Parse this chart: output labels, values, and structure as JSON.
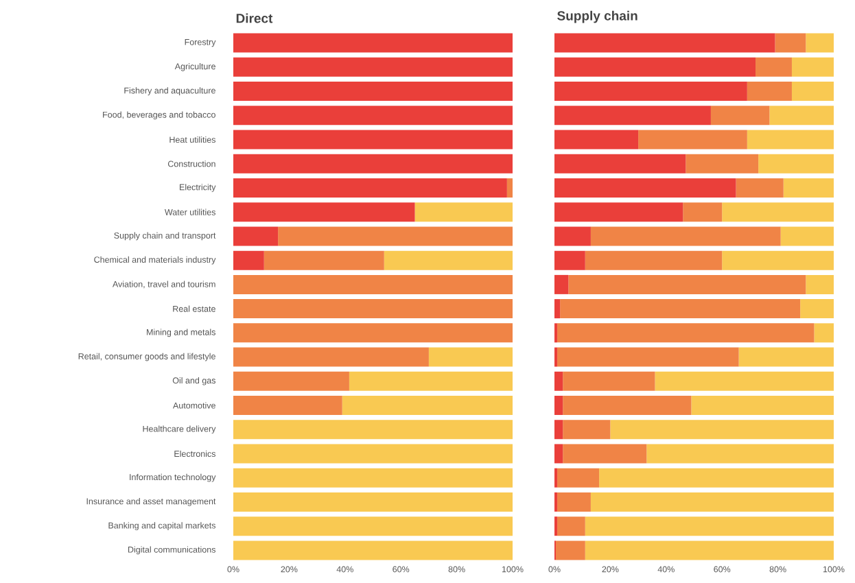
{
  "chart_data": [
    {
      "type": "bar",
      "title": "Direct",
      "orientation": "horizontal",
      "stacked": true,
      "categories": [
        "Forestry",
        "Agriculture",
        "Fishery and aquaculture",
        "Food, beverages and tobacco",
        "Heat utilities",
        "Construction",
        "Electricity",
        "Water utilities",
        "Supply chain and transport",
        "Chemical and materials industry",
        "Aviation, travel and tourism",
        "Real estate",
        "Mining and metals",
        "Retail, consumer goods and lifestyle",
        "Oil and gas",
        "Automotive",
        "Healthcare delivery",
        "Electronics",
        "Information technology",
        "Insurance and asset management",
        "Banking and capital markets",
        "Digital communications"
      ],
      "series": [
        {
          "color": "#ea3f3a",
          "values": [
            100,
            100,
            100,
            100,
            100,
            100,
            98,
            65,
            16,
            11,
            0,
            0,
            0,
            0,
            0,
            0,
            0,
            0,
            0,
            0,
            0,
            0
          ]
        },
        {
          "color": "#f08446",
          "values": [
            0,
            0,
            0,
            0,
            0,
            0,
            2,
            0,
            84,
            43,
            100,
            100,
            100,
            70,
            41.5,
            39,
            0,
            0,
            0,
            0,
            0,
            0
          ]
        },
        {
          "color": "#f9c952",
          "values": [
            0,
            0,
            0,
            0,
            0,
            0,
            0,
            35,
            0,
            46,
            0,
            0,
            0,
            30,
            58.5,
            61,
            100,
            100,
            100,
            100,
            100,
            100
          ]
        }
      ],
      "xlim": [
        0,
        100
      ],
      "xticks": [
        {
          "value": 0,
          "label": "0%"
        },
        {
          "value": 20,
          "label": "20%"
        },
        {
          "value": 40,
          "label": "40%"
        },
        {
          "value": 60,
          "label": "60%"
        },
        {
          "value": 80,
          "label": "80%"
        },
        {
          "value": 100,
          "label": "100%"
        }
      ]
    },
    {
      "type": "bar",
      "title": "Supply chain",
      "orientation": "horizontal",
      "stacked": true,
      "tick_labels": "x",
      "categories": [
        null,
        null,
        null,
        null,
        null,
        null,
        null,
        null,
        null,
        null,
        null,
        null,
        null,
        null,
        null,
        null,
        null,
        null,
        null,
        null,
        null,
        null
      ],
      "series": [
        {
          "color": "#ea3f3a",
          "values": [
            79,
            72,
            69,
            56,
            30,
            47,
            65,
            46,
            13,
            11,
            5,
            2,
            1,
            1,
            3,
            3,
            3,
            3,
            1,
            1,
            1,
            0.5
          ]
        },
        {
          "color": "#f08446",
          "values": [
            11,
            13,
            16,
            21,
            39,
            26,
            17,
            14,
            68,
            49,
            85,
            86,
            92,
            65,
            33,
            46,
            17,
            30,
            15,
            12,
            10,
            10.5
          ]
        },
        {
          "color": "#f9c952",
          "values": [
            10,
            15,
            15,
            23,
            31,
            27,
            18,
            40,
            19,
            40,
            10,
            12,
            7,
            34,
            64,
            51,
            80,
            67,
            84,
            87,
            89,
            89
          ]
        }
      ],
      "xlim": [
        0,
        100
      ],
      "xticks": [
        {
          "value": 0,
          "label": "0%"
        },
        {
          "value": 20,
          "label": "20%"
        },
        {
          "value": 40,
          "label": "40%"
        },
        {
          "value": 60,
          "label": "60%"
        },
        {
          "value": 80,
          "label": "80%"
        },
        {
          "value": 100,
          "label": "100%"
        }
      ]
    }
  ]
}
